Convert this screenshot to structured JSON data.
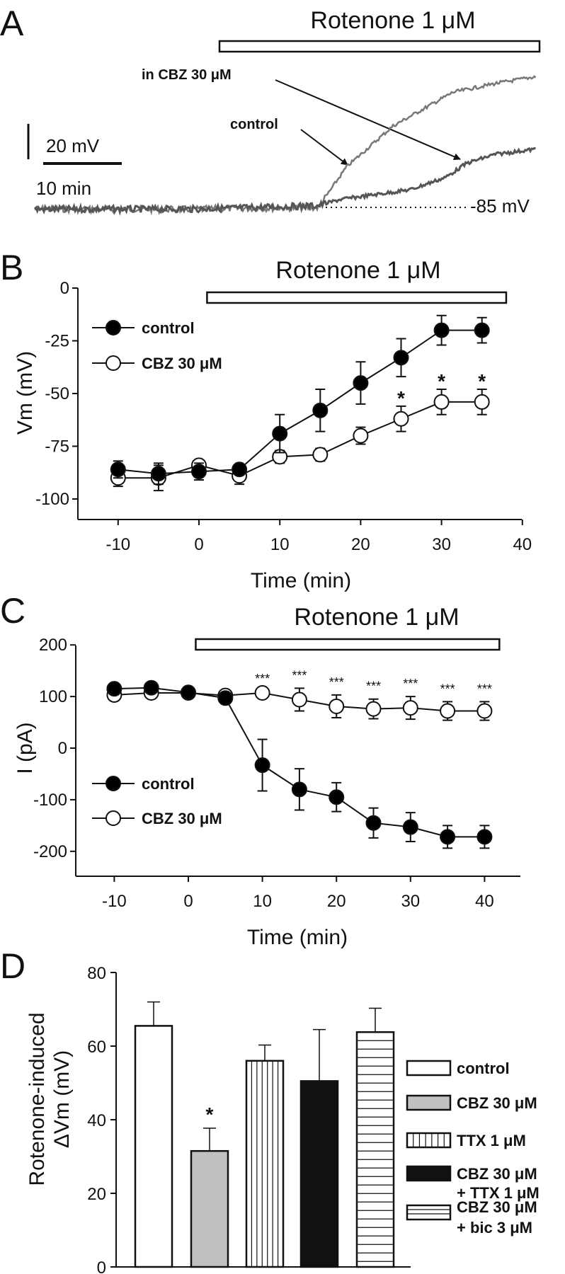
{
  "chart_data": [
    {
      "panel": "A",
      "type": "line",
      "panel_label": "A",
      "treatment_label": "Rotenone 1 μM",
      "annotations": {
        "cbz": "in CBZ 30 μM",
        "control": "control",
        "baseline": "-85 mV"
      },
      "scale_bars": {
        "voltage": "20 mV",
        "time": "10 min"
      },
      "baseline_mV": -85,
      "series": [
        {
          "name": "control",
          "color": "#777777",
          "points": [
            [
              0,
              -86
            ],
            [
              20,
              -86
            ],
            [
              36.1,
              -85
            ],
            [
              39.7,
              -62
            ],
            [
              45.6,
              -39
            ],
            [
              53.2,
              -20
            ],
            [
              58.6,
              -15
            ],
            [
              63.9,
              -11
            ]
          ]
        },
        {
          "name": "in CBZ 30 μM",
          "color": "#555555",
          "points": [
            [
              0,
              -86
            ],
            [
              20,
              -86
            ],
            [
              36.1,
              -84
            ],
            [
              38.8,
              -80.6
            ],
            [
              47.8,
              -75
            ],
            [
              52.3,
              -68
            ],
            [
              55,
              -60
            ],
            [
              58.6,
              -55
            ],
            [
              63.9,
              -52
            ]
          ]
        }
      ]
    },
    {
      "panel": "B",
      "type": "line",
      "panel_label": "B",
      "treatment_label": "Rotenone 1 μM",
      "treatment_range": [
        1,
        38
      ],
      "xlabel": "Time (min)",
      "ylabel": "Vm (mV)",
      "xlim": [
        -15,
        40
      ],
      "ylim": [
        -110,
        0
      ],
      "xticks": [
        "-10",
        "0",
        "10",
        "20",
        "30",
        "40"
      ],
      "yticks": [
        "0",
        "-25",
        "-50",
        "-75",
        "-100"
      ],
      "x": [
        -10,
        -5,
        0,
        5,
        10,
        15,
        20,
        25,
        30,
        35
      ],
      "series": [
        {
          "name": "control",
          "fill": "#000000",
          "values": [
            -86,
            -88,
            -87,
            -86,
            -69,
            -58,
            -45,
            -33,
            -20,
            -20
          ],
          "errors": [
            4,
            5,
            4,
            1,
            9,
            10,
            10,
            9,
            7,
            6
          ]
        },
        {
          "name": "CBZ 30 μM",
          "fill": "#ffffff",
          "values": [
            -90,
            -90,
            -84,
            -89,
            -80,
            -79,
            -70,
            -62,
            -54,
            -54
          ],
          "errors": [
            4,
            6,
            1,
            4,
            3,
            3,
            4,
            6,
            6,
            6
          ]
        }
      ],
      "significance": [
        {
          "x": 25,
          "label": "*"
        },
        {
          "x": 30,
          "label": "*"
        },
        {
          "x": 35,
          "label": "*"
        }
      ]
    },
    {
      "panel": "C",
      "type": "line",
      "panel_label": "C",
      "treatment_label": "Rotenone 1 μM",
      "treatment_range": [
        1,
        42
      ],
      "xlabel": "Time (min)",
      "ylabel": "I (pA)",
      "xlim": [
        -15,
        45
      ],
      "ylim": [
        -250,
        200
      ],
      "xticks": [
        "-10",
        "0",
        "10",
        "20",
        "30",
        "40"
      ],
      "yticks": [
        "200",
        "100",
        "0",
        "-100",
        "-200"
      ],
      "x": [
        -10,
        -5,
        0,
        5,
        10,
        15,
        20,
        25,
        30,
        35,
        40
      ],
      "series": [
        {
          "name": "control",
          "fill": "#000000",
          "values": [
            115,
            117,
            108,
            97,
            -33,
            -80,
            -95,
            -145,
            -153,
            -172,
            -172
          ],
          "errors": [
            3,
            3,
            3,
            3,
            50,
            40,
            28,
            29,
            28,
            22,
            22
          ]
        },
        {
          "name": "CBZ 30 μM",
          "fill": "#ffffff",
          "values": [
            103,
            107,
            107,
            102,
            107,
            94,
            81,
            76,
            78,
            72,
            72
          ],
          "errors": [
            3,
            3,
            3,
            3,
            3,
            22,
            22,
            19,
            22,
            18,
            18
          ]
        }
      ],
      "significance": [
        {
          "x": 10,
          "label": "***"
        },
        {
          "x": 15,
          "label": "***"
        },
        {
          "x": 20,
          "label": "***"
        },
        {
          "x": 25,
          "label": "***"
        },
        {
          "x": 30,
          "label": "***"
        },
        {
          "x": 35,
          "label": "***"
        },
        {
          "x": 40,
          "label": "***"
        }
      ]
    },
    {
      "panel": "D",
      "type": "bar",
      "panel_label": "D",
      "ylabel": [
        "Rotenone-induced",
        "ΔVm (mV)"
      ],
      "ylim": [
        0,
        80
      ],
      "yticks": [
        "0",
        "20",
        "40",
        "60",
        "80"
      ],
      "categories": [
        {
          "name": [
            "control"
          ],
          "pattern": "white",
          "value": 65.5,
          "error": 6.5,
          "sig": ""
        },
        {
          "name": [
            "CBZ 30 μM"
          ],
          "pattern": "gray",
          "value": 31.5,
          "error": 6.2,
          "sig": "*"
        },
        {
          "name": [
            "TTX 1 μM"
          ],
          "pattern": "vertical",
          "value": 56,
          "error": 4.3,
          "sig": ""
        },
        {
          "name": [
            "CBZ 30 μM",
            "+ TTX 1 μM"
          ],
          "pattern": "black",
          "value": 50.5,
          "error": 14,
          "sig": ""
        },
        {
          "name": [
            "CBZ 30 μM",
            "+ bic 3 μM"
          ],
          "pattern": "horizontal",
          "value": 63.8,
          "error": 6.5,
          "sig": ""
        }
      ],
      "legend_position": "right",
      "colors": {
        "gray": "#c0c0c0",
        "black": "#111111"
      }
    }
  ]
}
